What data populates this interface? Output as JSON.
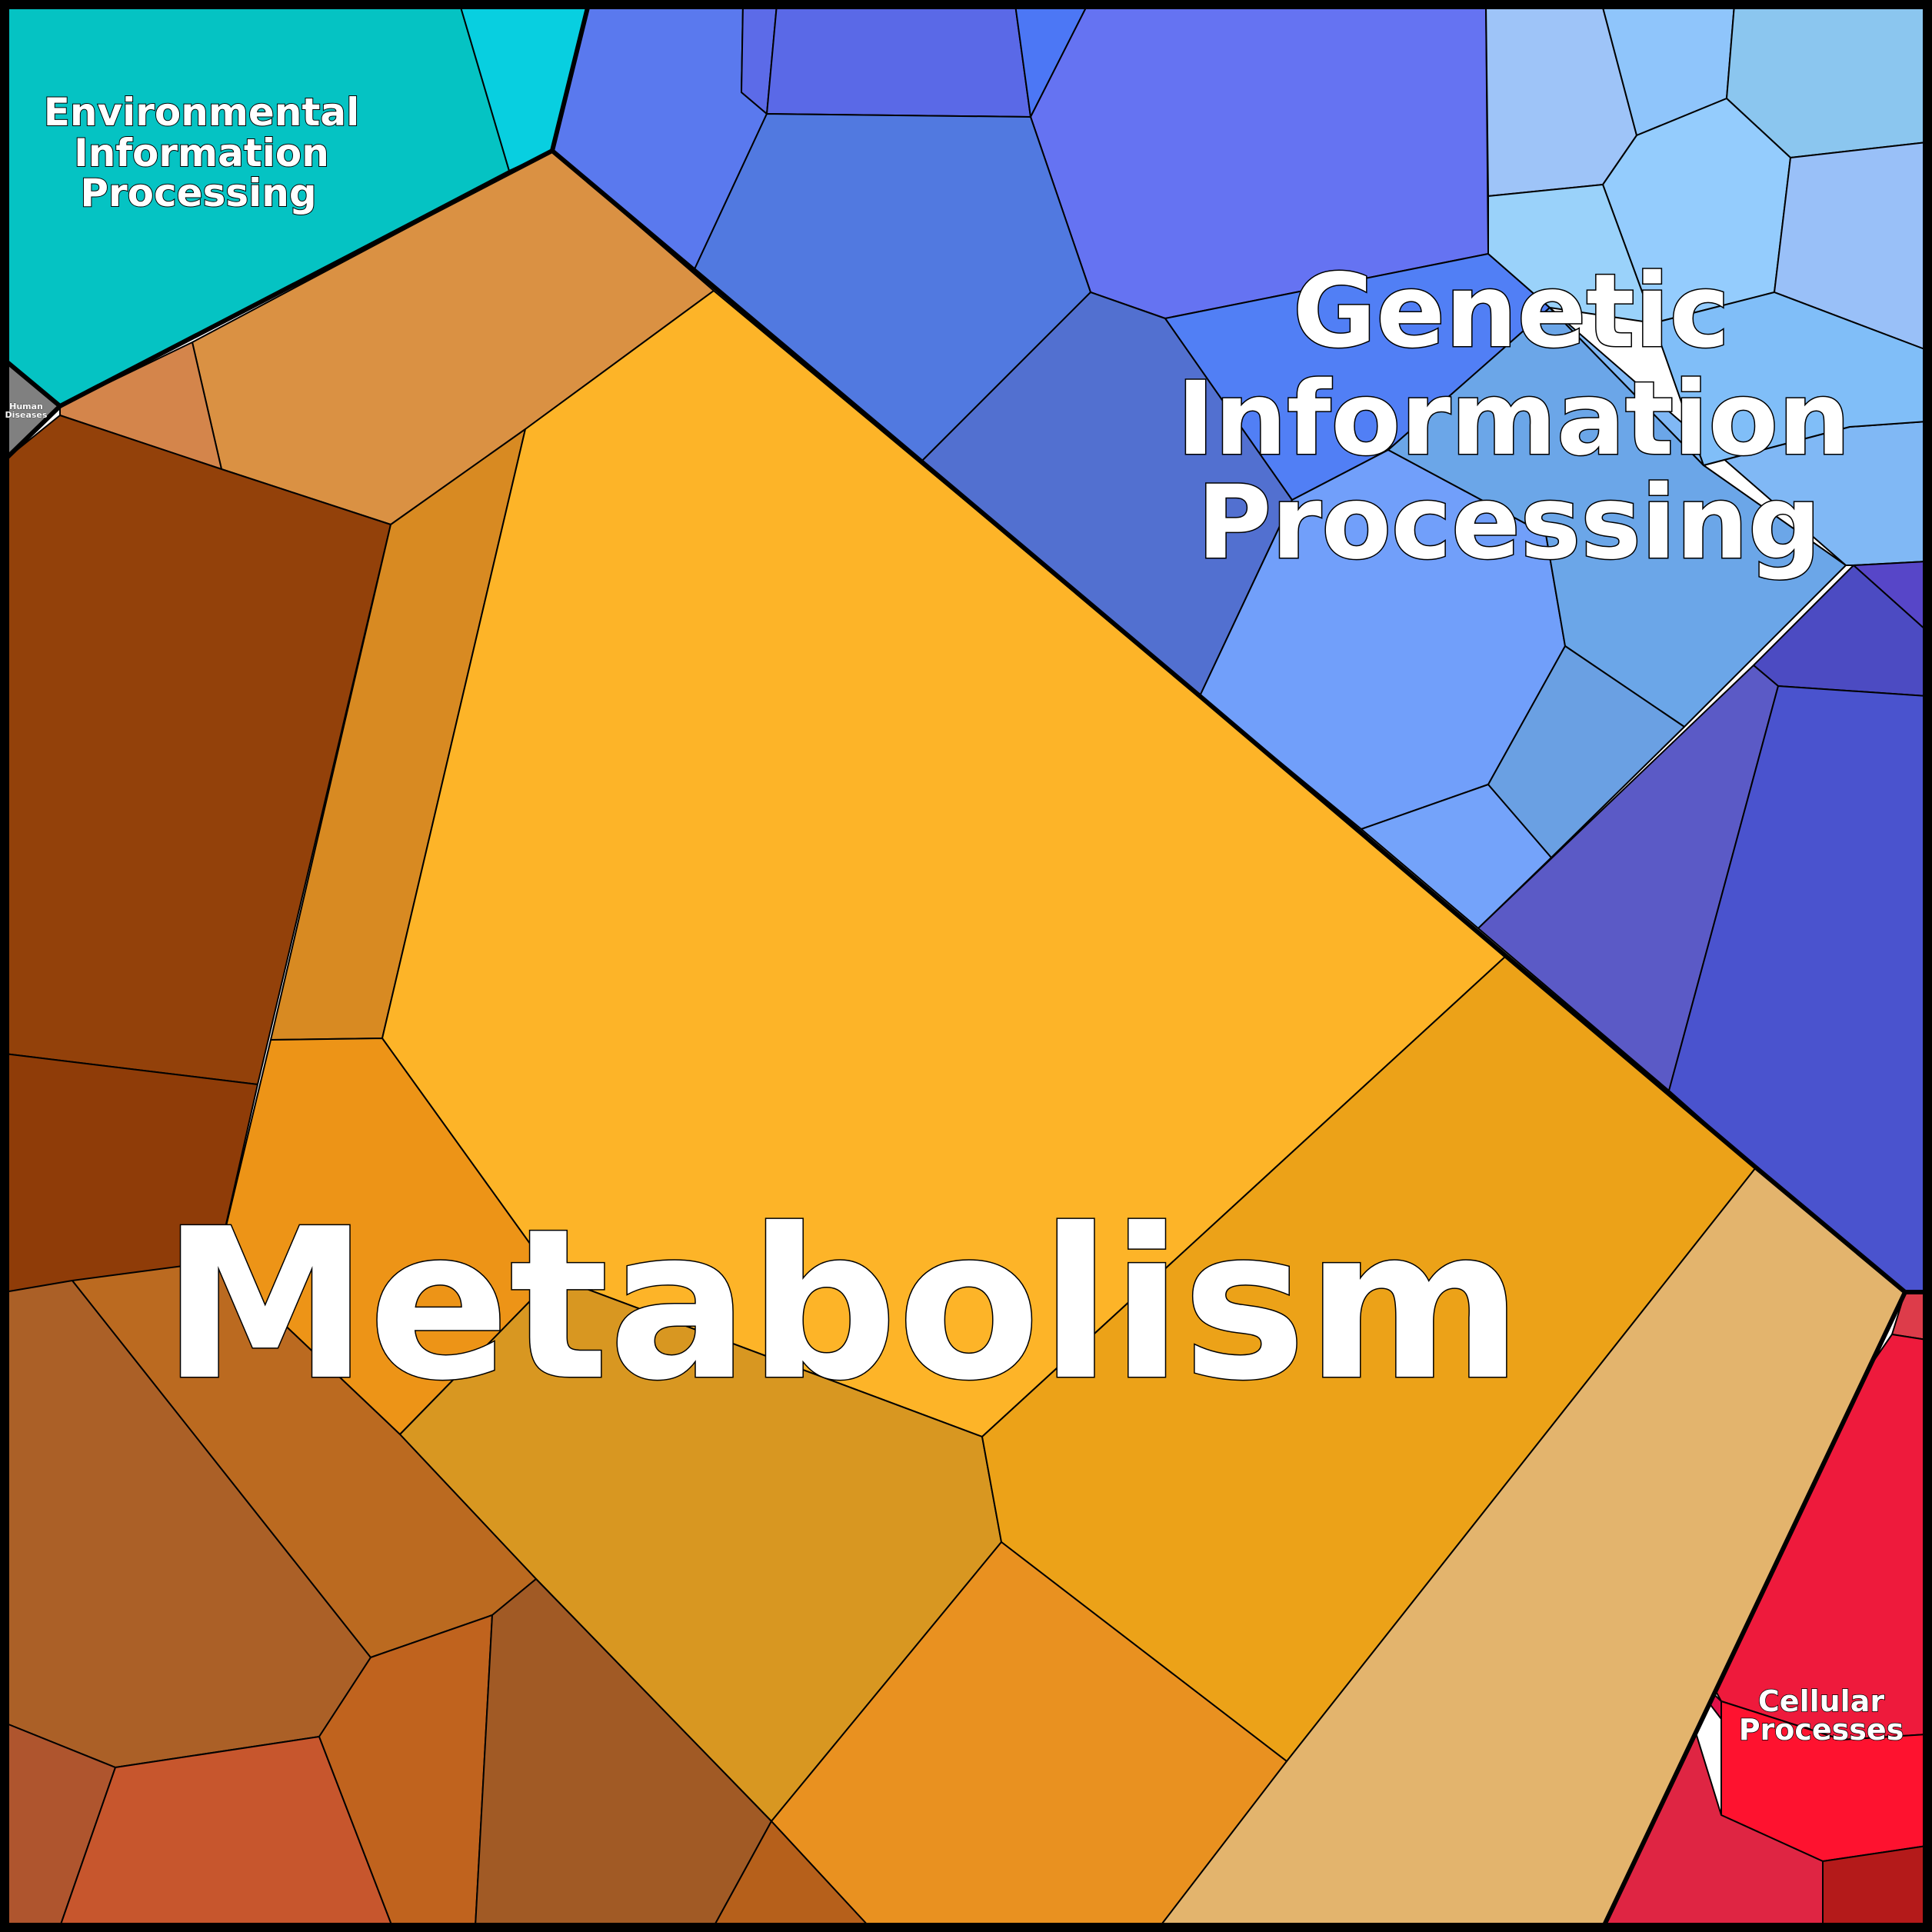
{
  "categories": [
    {
      "id": "metabolism",
      "label_lines": [
        "Metabolism"
      ],
      "color": "#fdb428"
    },
    {
      "id": "genetic",
      "label_lines": [
        "Genetic",
        "Information",
        "Processing"
      ],
      "color": "#5b8def"
    },
    {
      "id": "environmental",
      "label_lines": [
        "Environmental",
        "Information",
        "Processing"
      ],
      "color": "#05c3c3"
    },
    {
      "id": "cellular",
      "label_lines": [
        "Cellular",
        "Processes"
      ],
      "color": "#ee1a3c"
    },
    {
      "id": "human-diseases",
      "label_lines": [
        "Human",
        "Diseases"
      ],
      "color": "#808080"
    }
  ]
}
